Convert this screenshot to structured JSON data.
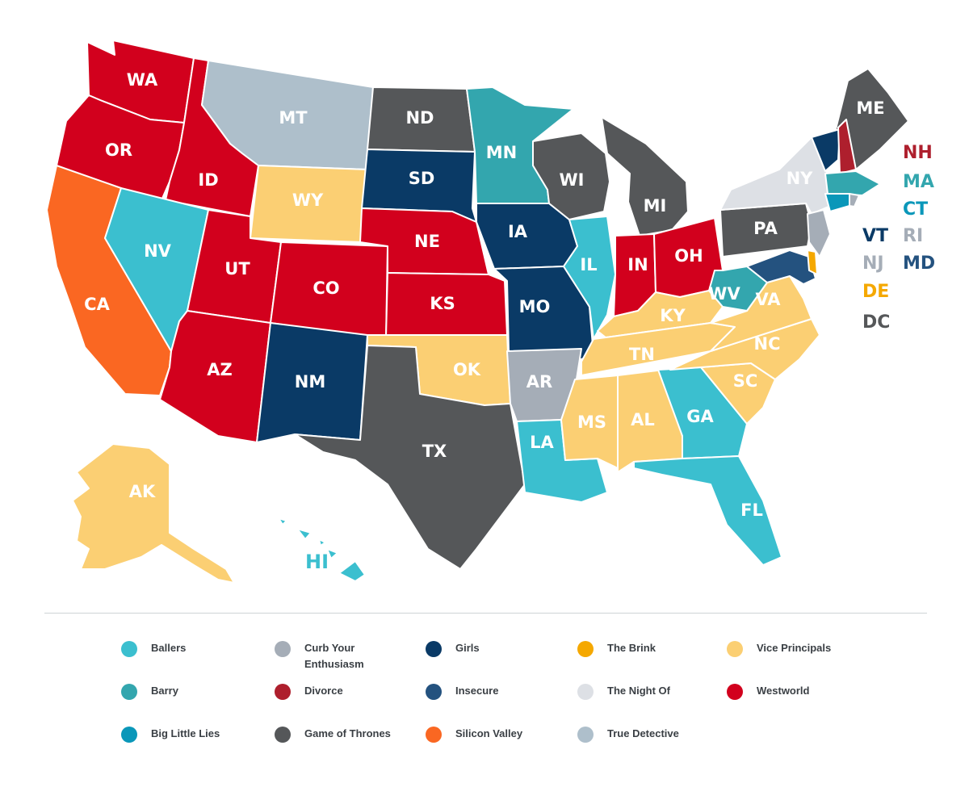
{
  "legend": [
    {
      "label": "Ballers",
      "color": "#3bbfcf"
    },
    {
      "label": "Curb Your Enthusiasm",
      "color": "#a5adb7"
    },
    {
      "label": "Girls",
      "color": "#0a3a66"
    },
    {
      "label": "The Brink",
      "color": "#f5a800"
    },
    {
      "label": "Vice Principals",
      "color": "#fbcf73"
    },
    {
      "label": "Barry",
      "color": "#33a6ae"
    },
    {
      "label": "Divorce",
      "color": "#ae1f2d"
    },
    {
      "label": "Insecure",
      "color": "#24527f"
    },
    {
      "label": "The Night Of",
      "color": "#dde0e5"
    },
    {
      "label": "Westworld",
      "color": "#d2001d"
    },
    {
      "label": "Big Little Lies",
      "color": "#0a97b9"
    },
    {
      "label": "Game of Thrones",
      "color": "#555759"
    },
    {
      "label": "Silicon Valley",
      "color": "#fa6722"
    },
    {
      "label": "True Detective",
      "color": "#aebfcb"
    }
  ],
  "states": {
    "WA": {
      "label": "WA",
      "show": "Westworld"
    },
    "OR": {
      "label": "OR",
      "show": "Westworld"
    },
    "CA": {
      "label": "CA",
      "show": "Silicon Valley"
    },
    "ID": {
      "label": "ID",
      "show": "Westworld"
    },
    "NV": {
      "label": "NV",
      "show": "Ballers"
    },
    "MT": {
      "label": "MT",
      "show": "True Detective"
    },
    "WY": {
      "label": "WY",
      "show": "Vice Principals"
    },
    "UT": {
      "label": "UT",
      "show": "Westworld"
    },
    "AZ": {
      "label": "AZ",
      "show": "Westworld"
    },
    "CO": {
      "label": "CO",
      "show": "Westworld"
    },
    "NM": {
      "label": "NM",
      "show": "Girls"
    },
    "ND": {
      "label": "ND",
      "show": "Game of Thrones"
    },
    "SD": {
      "label": "SD",
      "show": "Girls"
    },
    "NE": {
      "label": "NE",
      "show": "Westworld"
    },
    "KS": {
      "label": "KS",
      "show": "Westworld"
    },
    "OK": {
      "label": "OK",
      "show": "Vice Principals"
    },
    "TX": {
      "label": "TX",
      "show": "Game of Thrones"
    },
    "MN": {
      "label": "MN",
      "show": "Barry"
    },
    "IA": {
      "label": "IA",
      "show": "Girls"
    },
    "MO": {
      "label": "MO",
      "show": "Girls"
    },
    "AR": {
      "label": "AR",
      "show": "Curb Your Enthusiasm"
    },
    "LA": {
      "label": "LA",
      "show": "Ballers"
    },
    "WI": {
      "label": "WI",
      "show": "Game of Thrones"
    },
    "IL": {
      "label": "IL",
      "show": "Ballers"
    },
    "MI": {
      "label": "MI",
      "show": "Game of Thrones"
    },
    "IN": {
      "label": "IN",
      "show": "Westworld"
    },
    "OH": {
      "label": "OH",
      "show": "Westworld"
    },
    "KY": {
      "label": "KY",
      "show": "Vice Principals"
    },
    "TN": {
      "label": "TN",
      "show": "Vice Principals"
    },
    "MS": {
      "label": "MS",
      "show": "Vice Principals"
    },
    "AL": {
      "label": "AL",
      "show": "Vice Principals"
    },
    "GA": {
      "label": "GA",
      "show": "Ballers"
    },
    "FL": {
      "label": "FL",
      "show": "Ballers"
    },
    "SC": {
      "label": "SC",
      "show": "Vice Principals"
    },
    "NC": {
      "label": "NC",
      "show": "Vice Principals"
    },
    "VA": {
      "label": "VA",
      "show": "Vice Principals"
    },
    "WV": {
      "label": "WV",
      "show": "Barry"
    },
    "PA": {
      "label": "PA",
      "show": "Game of Thrones"
    },
    "NY": {
      "label": "NY",
      "show": "The Night Of"
    },
    "ME": {
      "label": "ME",
      "show": "Game of Thrones"
    },
    "AK": {
      "label": "AK",
      "show": "Vice Principals"
    },
    "HI": {
      "label": "HI",
      "show": "Ballers"
    }
  },
  "small_states": [
    {
      "label": "NH",
      "show": "Divorce"
    },
    {
      "label": "MA",
      "show": "Barry"
    },
    {
      "label": "CT",
      "show": "Big Little Lies"
    },
    {
      "label": "VT",
      "show": "Girls"
    },
    {
      "label": "RI",
      "show": "Curb Your Enthusiasm"
    },
    {
      "label": "NJ",
      "show": "Curb Your Enthusiasm"
    },
    {
      "label": "MD",
      "show": "Insecure"
    },
    {
      "label": "DE",
      "show": "The Brink"
    },
    {
      "label": "DC",
      "show": "Game of Thrones"
    }
  ]
}
